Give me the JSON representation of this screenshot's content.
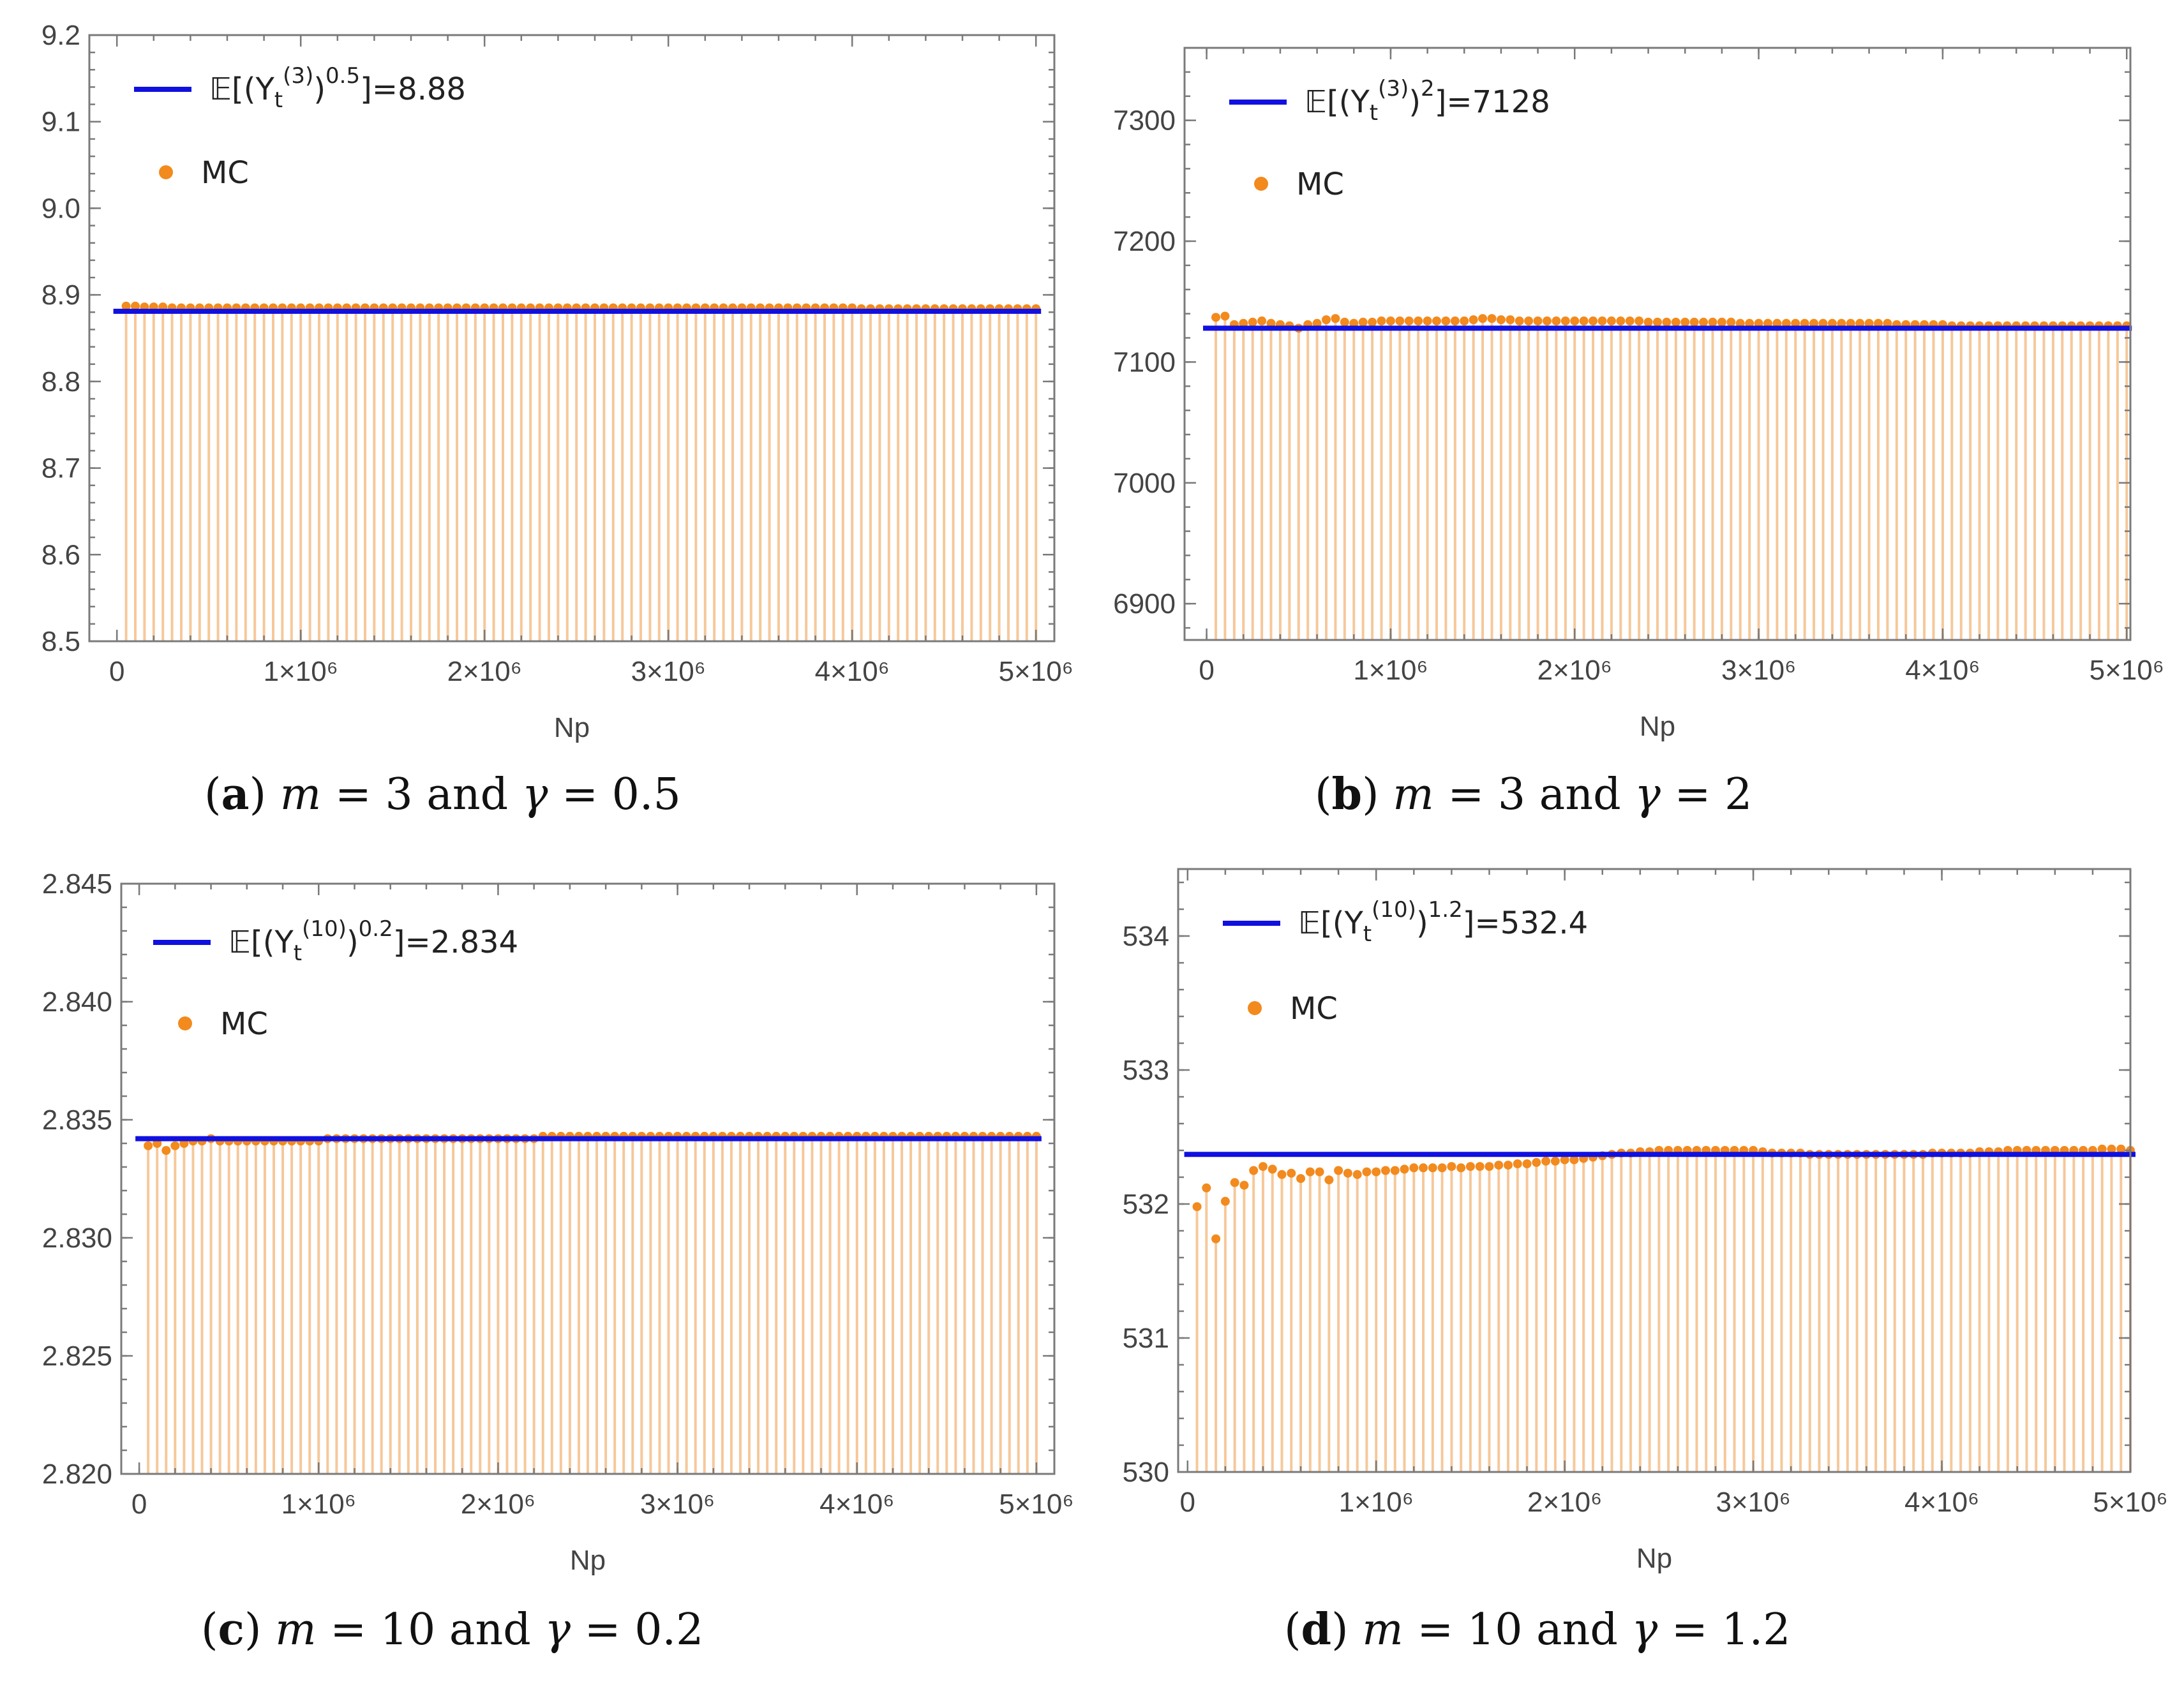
{
  "chart_data": [
    {
      "type": "scatter",
      "panel_id": "a",
      "caption": {
        "letter": "a",
        "text": "m = 3 and γ = 0.5",
        "m": "3",
        "gamma": "0.5"
      },
      "xlabel": "Np",
      "ylim": [
        8.5,
        9.2
      ],
      "yticks": [
        "8.5",
        "8.6",
        "8.7",
        "8.8",
        "8.9",
        "9.0",
        "9.1",
        "9.2"
      ],
      "xlim": [
        -150000,
        5100000
      ],
      "xticks": [
        {
          "value": 0,
          "label": "0"
        },
        {
          "value": 1000000,
          "label": "1×10⁶"
        },
        {
          "value": 2000000,
          "label": "2×10⁶"
        },
        {
          "value": 3000000,
          "label": "3×10⁶"
        },
        {
          "value": 4000000,
          "label": "4×10⁶"
        },
        {
          "value": 5000000,
          "label": "5×10⁶"
        }
      ],
      "legend": {
        "line_label": "𝔼[(Yₜ⁽³⁾)⁰·⁵]=8.88",
        "line_value": "8.88",
        "points_label": "MC"
      },
      "reference_value": 8.881,
      "series": [
        {
          "name": "MC",
          "x_start": 50000,
          "x_step": 50000,
          "count": 100,
          "values": [
            8.887,
            8.887,
            8.886,
            8.886,
            8.886,
            8.885,
            8.885,
            8.885,
            8.885,
            8.885,
            8.885,
            8.885,
            8.885,
            8.885,
            8.885,
            8.885,
            8.885,
            8.885,
            8.885,
            8.885,
            8.885,
            8.885,
            8.885,
            8.885,
            8.885,
            8.885,
            8.885,
            8.885,
            8.885,
            8.885,
            8.885,
            8.885,
            8.885,
            8.885,
            8.885,
            8.885,
            8.885,
            8.885,
            8.885,
            8.885,
            8.885,
            8.885,
            8.885,
            8.885,
            8.885,
            8.885,
            8.885,
            8.885,
            8.885,
            8.885,
            8.885,
            8.885,
            8.885,
            8.885,
            8.885,
            8.885,
            8.885,
            8.885,
            8.885,
            8.885,
            8.885,
            8.885,
            8.885,
            8.885,
            8.885,
            8.885,
            8.885,
            8.885,
            8.885,
            8.885,
            8.885,
            8.885,
            8.885,
            8.885,
            8.885,
            8.885,
            8.885,
            8.885,
            8.885,
            8.885,
            8.884,
            8.884,
            8.884,
            8.884,
            8.884,
            8.884,
            8.884,
            8.884,
            8.884,
            8.884,
            8.884,
            8.884,
            8.884,
            8.884,
            8.884,
            8.884,
            8.884,
            8.884,
            8.884,
            8.884
          ]
        }
      ]
    },
    {
      "type": "scatter",
      "panel_id": "b",
      "caption": {
        "letter": "b",
        "text": "m = 3 and γ = 2",
        "m": "3",
        "gamma": "2"
      },
      "xlabel": "Np",
      "ylim": [
        6870,
        7360
      ],
      "yticks": [
        "6900",
        "7000",
        "7100",
        "7200",
        "7300"
      ],
      "xlim": [
        -120000,
        5020000
      ],
      "xticks": [
        {
          "value": 0,
          "label": "0"
        },
        {
          "value": 1000000,
          "label": "1×10⁶"
        },
        {
          "value": 2000000,
          "label": "2×10⁶"
        },
        {
          "value": 3000000,
          "label": "3×10⁶"
        },
        {
          "value": 4000000,
          "label": "4×10⁶"
        },
        {
          "value": 5000000,
          "label": "5×10⁶"
        }
      ],
      "legend": {
        "line_label": "𝔼[(Yₜ⁽³⁾)²]=7128",
        "line_value": "7128",
        "points_label": "MC"
      },
      "reference_value": 7128,
      "series": [
        {
          "name": "MC",
          "x_start": 50000,
          "x_step": 50000,
          "count": 100,
          "values": [
            7137,
            7138,
            7131,
            7132,
            7133,
            7134,
            7132,
            7131,
            7130,
            7128,
            7131,
            7132,
            7135,
            7136,
            7133,
            7132,
            7133,
            7133,
            7134,
            7134,
            7134,
            7134,
            7134,
            7134,
            7134,
            7134,
            7134,
            7134,
            7135,
            7136,
            7136,
            7135,
            7135,
            7134,
            7134,
            7134,
            7134,
            7134,
            7134,
            7134,
            7134,
            7134,
            7134,
            7134,
            7134,
            7134,
            7134,
            7133,
            7133,
            7133,
            7133,
            7133,
            7133,
            7133,
            7133,
            7133,
            7133,
            7132,
            7132,
            7132,
            7132,
            7132,
            7132,
            7132,
            7132,
            7132,
            7132,
            7132,
            7132,
            7132,
            7132,
            7132,
            7132,
            7132,
            7131,
            7131,
            7131,
            7131,
            7131,
            7131,
            7130,
            7130,
            7130,
            7130,
            7130,
            7130,
            7130,
            7130,
            7130,
            7130,
            7130,
            7130,
            7130,
            7130,
            7130,
            7130,
            7130,
            7130,
            7130,
            7130
          ]
        }
      ]
    },
    {
      "type": "scatter",
      "panel_id": "c",
      "caption": {
        "letter": "c",
        "text": "m = 10 and γ = 0.2",
        "m": "10",
        "gamma": "0.2"
      },
      "xlabel": "Np",
      "ylim": [
        2.82,
        2.845
      ],
      "yticks": [
        "2.820",
        "2.825",
        "2.830",
        "2.835",
        "2.840",
        "2.845"
      ],
      "xlim": [
        -100000,
        5100000
      ],
      "xticks": [
        {
          "value": 0,
          "label": "0"
        },
        {
          "value": 1000000,
          "label": "1×10⁶"
        },
        {
          "value": 2000000,
          "label": "2×10⁶"
        },
        {
          "value": 3000000,
          "label": "3×10⁶"
        },
        {
          "value": 4000000,
          "label": "4×10⁶"
        },
        {
          "value": 5000000,
          "label": "5×10⁶"
        }
      ],
      "legend": {
        "line_label": "𝔼[(Yₜ⁽¹⁰⁾)⁰·²]=2.834",
        "line_value": "2.834",
        "points_label": "MC"
      },
      "reference_value": 2.8342,
      "series": [
        {
          "name": "MC",
          "x_start": 50000,
          "x_step": 50000,
          "count": 100,
          "values": [
            2.8339,
            2.834,
            2.8337,
            2.8339,
            2.834,
            2.8341,
            2.8341,
            2.8342,
            2.8341,
            2.8341,
            2.8341,
            2.8341,
            2.8341,
            2.8341,
            2.8341,
            2.8341,
            2.8341,
            2.8341,
            2.8341,
            2.8341,
            2.8342,
            2.8342,
            2.8342,
            2.8342,
            2.8342,
            2.8342,
            2.8342,
            2.8342,
            2.8342,
            2.8342,
            2.8342,
            2.8342,
            2.8342,
            2.8342,
            2.8342,
            2.8342,
            2.8342,
            2.8342,
            2.8342,
            2.8342,
            2.8342,
            2.8342,
            2.8342,
            2.8342,
            2.8343,
            2.8343,
            2.8343,
            2.8343,
            2.8343,
            2.8343,
            2.8343,
            2.8343,
            2.8343,
            2.8343,
            2.8343,
            2.8343,
            2.8343,
            2.8343,
            2.8343,
            2.8343,
            2.8343,
            2.8343,
            2.8343,
            2.8343,
            2.8343,
            2.8343,
            2.8343,
            2.8343,
            2.8343,
            2.8343,
            2.8343,
            2.8343,
            2.8343,
            2.8343,
            2.8343,
            2.8343,
            2.8343,
            2.8343,
            2.8343,
            2.8343,
            2.8343,
            2.8343,
            2.8343,
            2.8343,
            2.8343,
            2.8343,
            2.8343,
            2.8343,
            2.8343,
            2.8343,
            2.8343,
            2.8343,
            2.8343,
            2.8343,
            2.8343,
            2.8343,
            2.8343,
            2.8343,
            2.8343,
            2.8343
          ]
        }
      ]
    },
    {
      "type": "scatter",
      "panel_id": "d",
      "caption": {
        "letter": "d",
        "text": "m = 10 and γ = 1.2",
        "m": "10",
        "gamma": "1.2"
      },
      "xlabel": "Np",
      "ylim": [
        530,
        534.5
      ],
      "yticks": [
        "530",
        "531",
        "532",
        "533",
        "534"
      ],
      "xlim": [
        -50000,
        5000000
      ],
      "xticks": [
        {
          "value": 0,
          "label": "0"
        },
        {
          "value": 1000000,
          "label": "1×10⁶"
        },
        {
          "value": 2000000,
          "label": "2×10⁶"
        },
        {
          "value": 3000000,
          "label": "3×10⁶"
        },
        {
          "value": 4000000,
          "label": "4×10⁶"
        },
        {
          "value": 5000000,
          "label": "5×10⁶"
        }
      ],
      "legend": {
        "line_label": "𝔼[(Yₜ⁽¹⁰⁾)¹·²]=532.4",
        "line_value": "532.4",
        "points_label": "MC"
      },
      "reference_value": 532.37,
      "series": [
        {
          "name": "MC",
          "x_start": 50000,
          "x_step": 50000,
          "count": 100,
          "values": [
            531.98,
            532.12,
            531.74,
            532.02,
            532.16,
            532.14,
            532.25,
            532.28,
            532.26,
            532.22,
            532.23,
            532.19,
            532.24,
            532.24,
            532.18,
            532.25,
            532.23,
            532.22,
            532.24,
            532.24,
            532.25,
            532.25,
            532.26,
            532.27,
            532.27,
            532.27,
            532.27,
            532.28,
            532.27,
            532.28,
            532.28,
            532.28,
            532.29,
            532.29,
            532.3,
            532.3,
            532.31,
            532.32,
            532.32,
            532.33,
            532.33,
            532.34,
            532.35,
            532.36,
            532.37,
            532.38,
            532.38,
            532.39,
            532.39,
            532.4,
            532.4,
            532.4,
            532.4,
            532.4,
            532.4,
            532.4,
            532.4,
            532.4,
            532.4,
            532.4,
            532.39,
            532.38,
            532.38,
            532.38,
            532.38,
            532.37,
            532.37,
            532.37,
            532.37,
            532.37,
            532.37,
            532.37,
            532.37,
            532.37,
            532.37,
            532.37,
            532.37,
            532.37,
            532.38,
            532.38,
            532.38,
            532.38,
            532.38,
            532.39,
            532.39,
            532.39,
            532.4,
            532.4,
            532.4,
            532.4,
            532.4,
            532.4,
            532.4,
            532.4,
            532.4,
            532.4,
            532.41,
            532.41,
            532.41,
            532.4
          ]
        }
      ]
    }
  ]
}
